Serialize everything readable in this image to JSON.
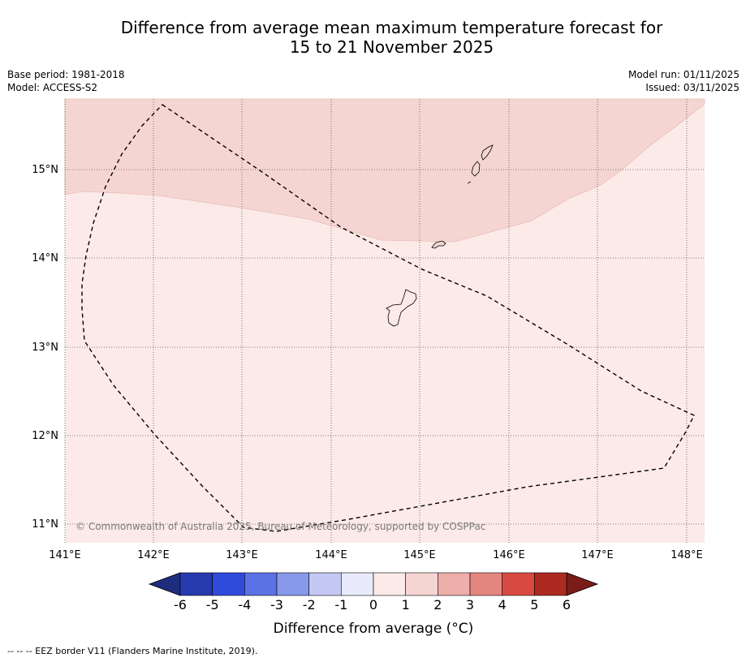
{
  "title": {
    "line1": "Difference from average mean maximum temperature forecast for",
    "line2": "15 to 21 November 2025"
  },
  "meta": {
    "base_period": "Base period: 1981-2018",
    "model": "Model: ACCESS-S2",
    "model_run": "Model run: 01/11/2025",
    "issued": "Issued: 03/11/2025"
  },
  "map": {
    "lat_labels": [
      "15°N",
      "14°N",
      "13°N",
      "12°N",
      "11°N"
    ],
    "lon_labels": [
      "141°E",
      "142°E",
      "143°E",
      "144°E",
      "145°E",
      "146°E",
      "147°E",
      "148°E"
    ],
    "copyright": "© Commonwealth of Australia 2025, Bureau of Meteorology, supported by COSPPac",
    "regions": [
      {
        "category": "1 to 2",
        "color": "#f5d5d2"
      },
      {
        "category": "0 to 1",
        "color": "#fbeae8"
      }
    ]
  },
  "colorbar": {
    "title": "Difference from average (°C)",
    "ticks": [
      "-6",
      "-5",
      "-4",
      "-3",
      "-2",
      "-1",
      "0",
      "1",
      "2",
      "3",
      "4",
      "5",
      "6"
    ],
    "colors": [
      "#283ab0",
      "#2f4bdc",
      "#5b72e6",
      "#8898ea",
      "#c2c8f3",
      "#e9ebfb",
      "#fbeae8",
      "#f5d5d2",
      "#eeaeaa",
      "#e5857f",
      "#d84a41",
      "#ad2a21"
    ],
    "under_color": "#1f2d7f",
    "over_color": "#7a1c18"
  },
  "legend_note": "-- -- -- EEZ border V11 (Flanders Marine Institute, 2019)."
}
